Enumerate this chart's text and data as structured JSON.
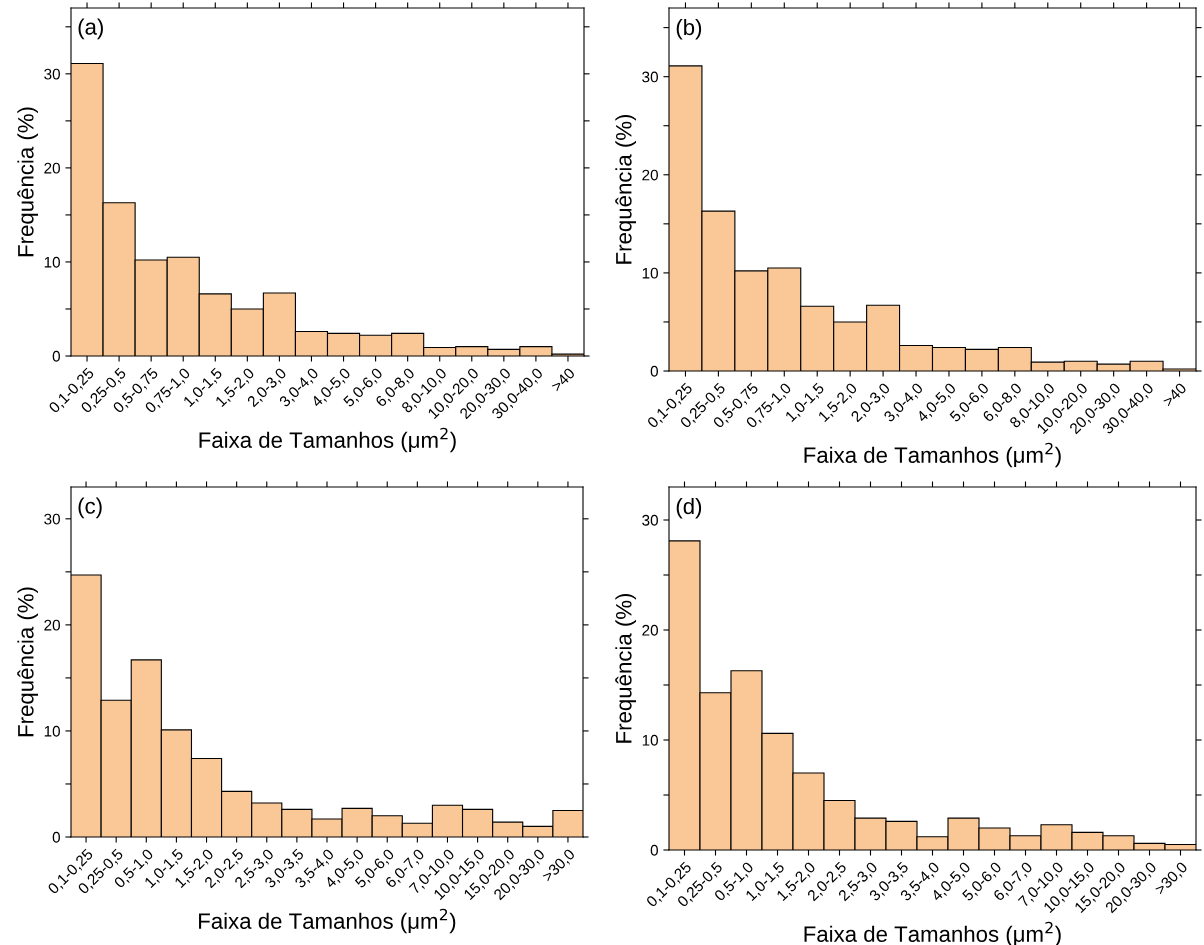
{
  "chart_data": [
    {
      "type": "bar",
      "title": "(a)",
      "xlabel": "Faixa de Tamanhos (μm$^{2}$)",
      "ylabel": "Frequência (%)",
      "color": "#fac896",
      "categories": [
        "0,1-0,25",
        "0,25-0,5",
        "0,5-0,75",
        "0,75-1,0",
        "1,0-1,5",
        "1,5-2,0",
        "2,0-3,0",
        "3,0-4,0",
        "4,0-5,0",
        "5,0-6,0",
        "6,0-8,0",
        "8,0-10,0",
        "10,0-20,0",
        "20,0-30,0",
        "30,0-40,0",
        ">40"
      ],
      "values": [
        31.1,
        16.3,
        10.2,
        10.5,
        6.6,
        5.0,
        6.7,
        2.6,
        2.4,
        2.2,
        2.4,
        0.9,
        1.0,
        0.7,
        1.0,
        0.2
      ],
      "ylim": [
        0,
        37
      ],
      "yticks": [
        0,
        {
          "value": 5,
          "label": null
        },
        10,
        {
          "value": 15,
          "label": null
        },
        20,
        {
          "value": 25,
          "label": null
        },
        30,
        {
          "value": 35,
          "label": null
        }
      ]
    },
    {
      "type": "bar",
      "title": "(b)",
      "xlabel": "Faixa de Tamanhos (μm$^{2}$)",
      "ylabel": "Frequência (%)",
      "color": "#fac896",
      "categories": [
        "0,1-0,25",
        "0,25-0,5",
        "0,5-0,75",
        "0,75-1,0",
        "1,0-1,5",
        "1,5-2,0",
        "2,0-3,0",
        "3,0-4,0",
        "4,0-5,0",
        "5,0-6,0",
        "6,0-8,0",
        "8,0-10,0",
        "10,0-20,0",
        "20,0-30,0",
        "30,0-40,0",
        ">40"
      ],
      "values": [
        31.1,
        16.3,
        10.2,
        10.5,
        6.6,
        5.0,
        6.7,
        2.6,
        2.4,
        2.2,
        2.4,
        0.9,
        1.0,
        0.7,
        1.0,
        0.2
      ],
      "ylim": [
        0,
        37
      ],
      "yticks": [
        0,
        {
          "value": 5,
          "label": null
        },
        10,
        {
          "value": 15,
          "label": null
        },
        20,
        {
          "value": 25,
          "label": null
        },
        30,
        {
          "value": 35,
          "label": null
        }
      ]
    },
    {
      "type": "bar",
      "title": "(c)",
      "xlabel": "Faixa de Tamanhos (μm$^{2}$)",
      "ylabel": "Frequência (%)",
      "color": "#fac896",
      "categories": [
        "0,1-0,25",
        "0,25-0,5",
        "0,5-1,0",
        "1,0-1,5",
        "1,5-2,0",
        "2,0-2,5",
        "2,5-3,0",
        "3,0-3,5",
        "3,5-4,0",
        "4,0-5,0",
        "5,0-6,0",
        "6,0-7,0",
        "7,0-10,0",
        "10,0-15,0",
        "15,0-20,0",
        "20,0-30,0",
        ">30,0"
      ],
      "values": [
        24.7,
        12.9,
        16.7,
        10.1,
        7.4,
        4.3,
        3.2,
        2.6,
        1.7,
        2.7,
        2.0,
        1.3,
        3.0,
        2.6,
        1.4,
        1.0,
        2.5
      ],
      "ylim": [
        0,
        33
      ],
      "yticks": [
        0,
        {
          "value": 5,
          "label": null
        },
        10,
        {
          "value": 15,
          "label": null
        },
        20,
        {
          "value": 25,
          "label": null
        },
        30
      ]
    },
    {
      "type": "bar",
      "title": "(d)",
      "xlabel": "Faixa de Tamanhos (μm$^{2}$)",
      "ylabel": "Frequência (%)",
      "color": "#fac896",
      "categories": [
        "0,1-0,25",
        "0,25-0,5",
        "0,5-1,0",
        "1,0-1,5",
        "1,5-2,0",
        "2,0-2,5",
        "2,5-3,0",
        "3,0-3,5",
        "3,5-4,0",
        "4,0-5,0",
        "5,0-6,0",
        "6,0-7,0",
        "7,0-10,0",
        "10,0-15,0",
        "15,0-20,0",
        "20,0-30,0",
        ">30,0"
      ],
      "values": [
        28.1,
        14.3,
        16.3,
        10.6,
        7.0,
        4.5,
        2.9,
        2.6,
        1.2,
        2.9,
        2.0,
        1.3,
        2.3,
        1.6,
        1.3,
        0.6,
        0.5
      ],
      "ylim": [
        0,
        33
      ],
      "yticks": [
        0,
        {
          "value": 5,
          "label": null
        },
        10,
        {
          "value": 15,
          "label": null
        },
        20,
        {
          "value": 25,
          "label": null
        },
        30
      ]
    }
  ]
}
